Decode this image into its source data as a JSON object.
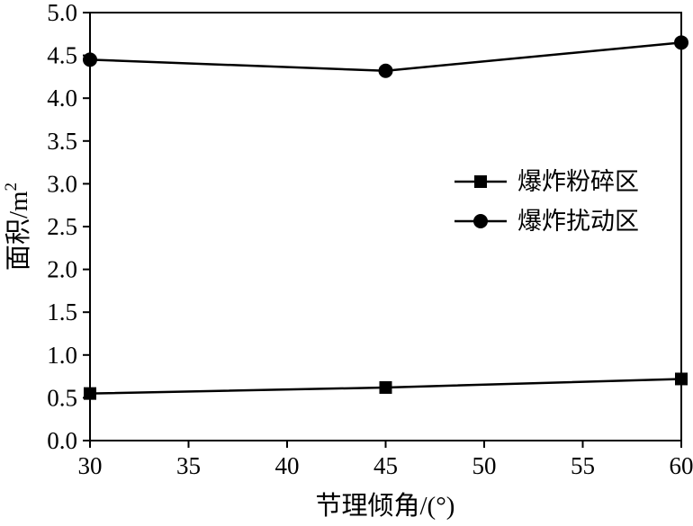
{
  "figure": {
    "background": "#ffffff"
  },
  "chart_data": {
    "type": "line",
    "title": "",
    "x": [
      30,
      45,
      60
    ],
    "series": [
      {
        "name": "爆炸粉碎区",
        "marker": "square",
        "values": [
          0.55,
          0.62,
          0.72
        ]
      },
      {
        "name": "爆炸扰动区",
        "marker": "circle",
        "values": [
          4.45,
          4.32,
          4.65
        ]
      }
    ],
    "xlabel": "节理倾角/(°)",
    "ylabel_base": "面积/m",
    "ylabel_sup": "2",
    "xlim": [
      30,
      60
    ],
    "ylim": [
      0.0,
      5.0
    ],
    "xticks": [
      30,
      35,
      40,
      45,
      50,
      55,
      60
    ],
    "yticks": [
      0.0,
      0.5,
      1.0,
      1.5,
      2.0,
      2.5,
      3.0,
      3.5,
      4.0,
      4.5,
      5.0
    ],
    "grid": false,
    "legend_position": "center-right",
    "color": "#000000"
  }
}
